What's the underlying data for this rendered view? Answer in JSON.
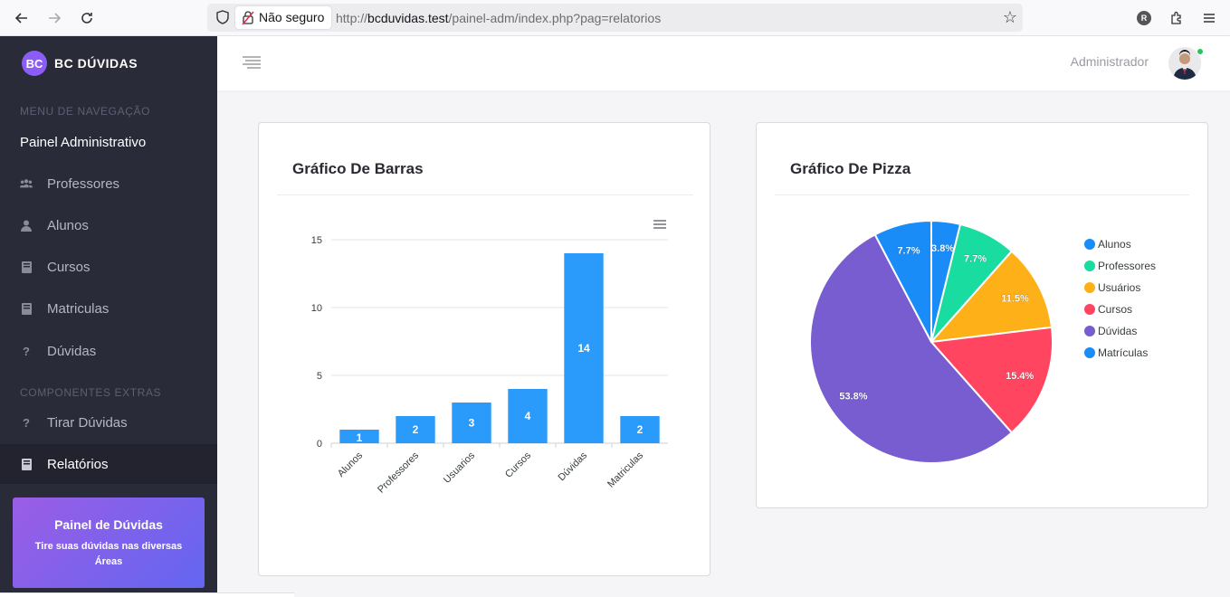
{
  "browser": {
    "not_secure_label": "Não seguro",
    "url_prefix": "http://",
    "url_domain": "bcduvidas.test",
    "url_path": "/painel-adm/index.php?pag=relatorios",
    "profile_initial": "R"
  },
  "sidebar": {
    "brand_logo": "BC",
    "brand_name": "BC DÚVIDAS",
    "section_nav": "MENU DE NAVEGAÇÃO",
    "dashboard_label": "Painel Administrativo",
    "items": [
      {
        "label": "Professores",
        "icon": "users-icon"
      },
      {
        "label": "Alunos",
        "icon": "user-icon"
      },
      {
        "label": "Cursos",
        "icon": "book-icon"
      },
      {
        "label": "Matriculas",
        "icon": "book-icon"
      },
      {
        "label": "Dúvidas",
        "icon": "question-icon"
      }
    ],
    "section_extra": "COMPONENTES EXTRAS",
    "extra_items": [
      {
        "label": "Tirar Dúvidas",
        "icon": "question-icon"
      },
      {
        "label": "Relatórios",
        "icon": "book-icon"
      }
    ],
    "promo": {
      "title": "Painel de Dúvidas",
      "text": "Tire suas dúvidas nas diversas Áreas"
    }
  },
  "header": {
    "user_label": "Administrador"
  },
  "bar_card": {
    "title": "Gráfico De Barras"
  },
  "pie_card": {
    "title": "Gráfico De Pizza"
  },
  "colors": {
    "bar": "#2b9bfb",
    "pie": [
      "#1a8cf7",
      "#19dca0",
      "#feb019",
      "#ff4560",
      "#775dd0",
      "#1a8cf7"
    ]
  },
  "chart_data": [
    {
      "type": "bar",
      "categories": [
        "Alunos",
        "Professores",
        "Usuarios",
        "Cursos",
        "Dúvidas",
        "Matriculas"
      ],
      "values": [
        1,
        2,
        3,
        4,
        14,
        2
      ],
      "yticks": [
        0,
        5,
        10,
        15
      ],
      "ylim": [
        0,
        15
      ],
      "grid": true
    },
    {
      "type": "pie",
      "labels": [
        "Alunos",
        "Professores",
        "Usuários",
        "Cursos",
        "Dúvidas",
        "Matrículas"
      ],
      "values": [
        1,
        2,
        3,
        4,
        14,
        2
      ],
      "percent_labels": [
        "3.8%",
        "7.7%",
        "11.5%",
        "15.4%",
        "53.8%",
        "7.7%"
      ],
      "legend": "right"
    }
  ]
}
